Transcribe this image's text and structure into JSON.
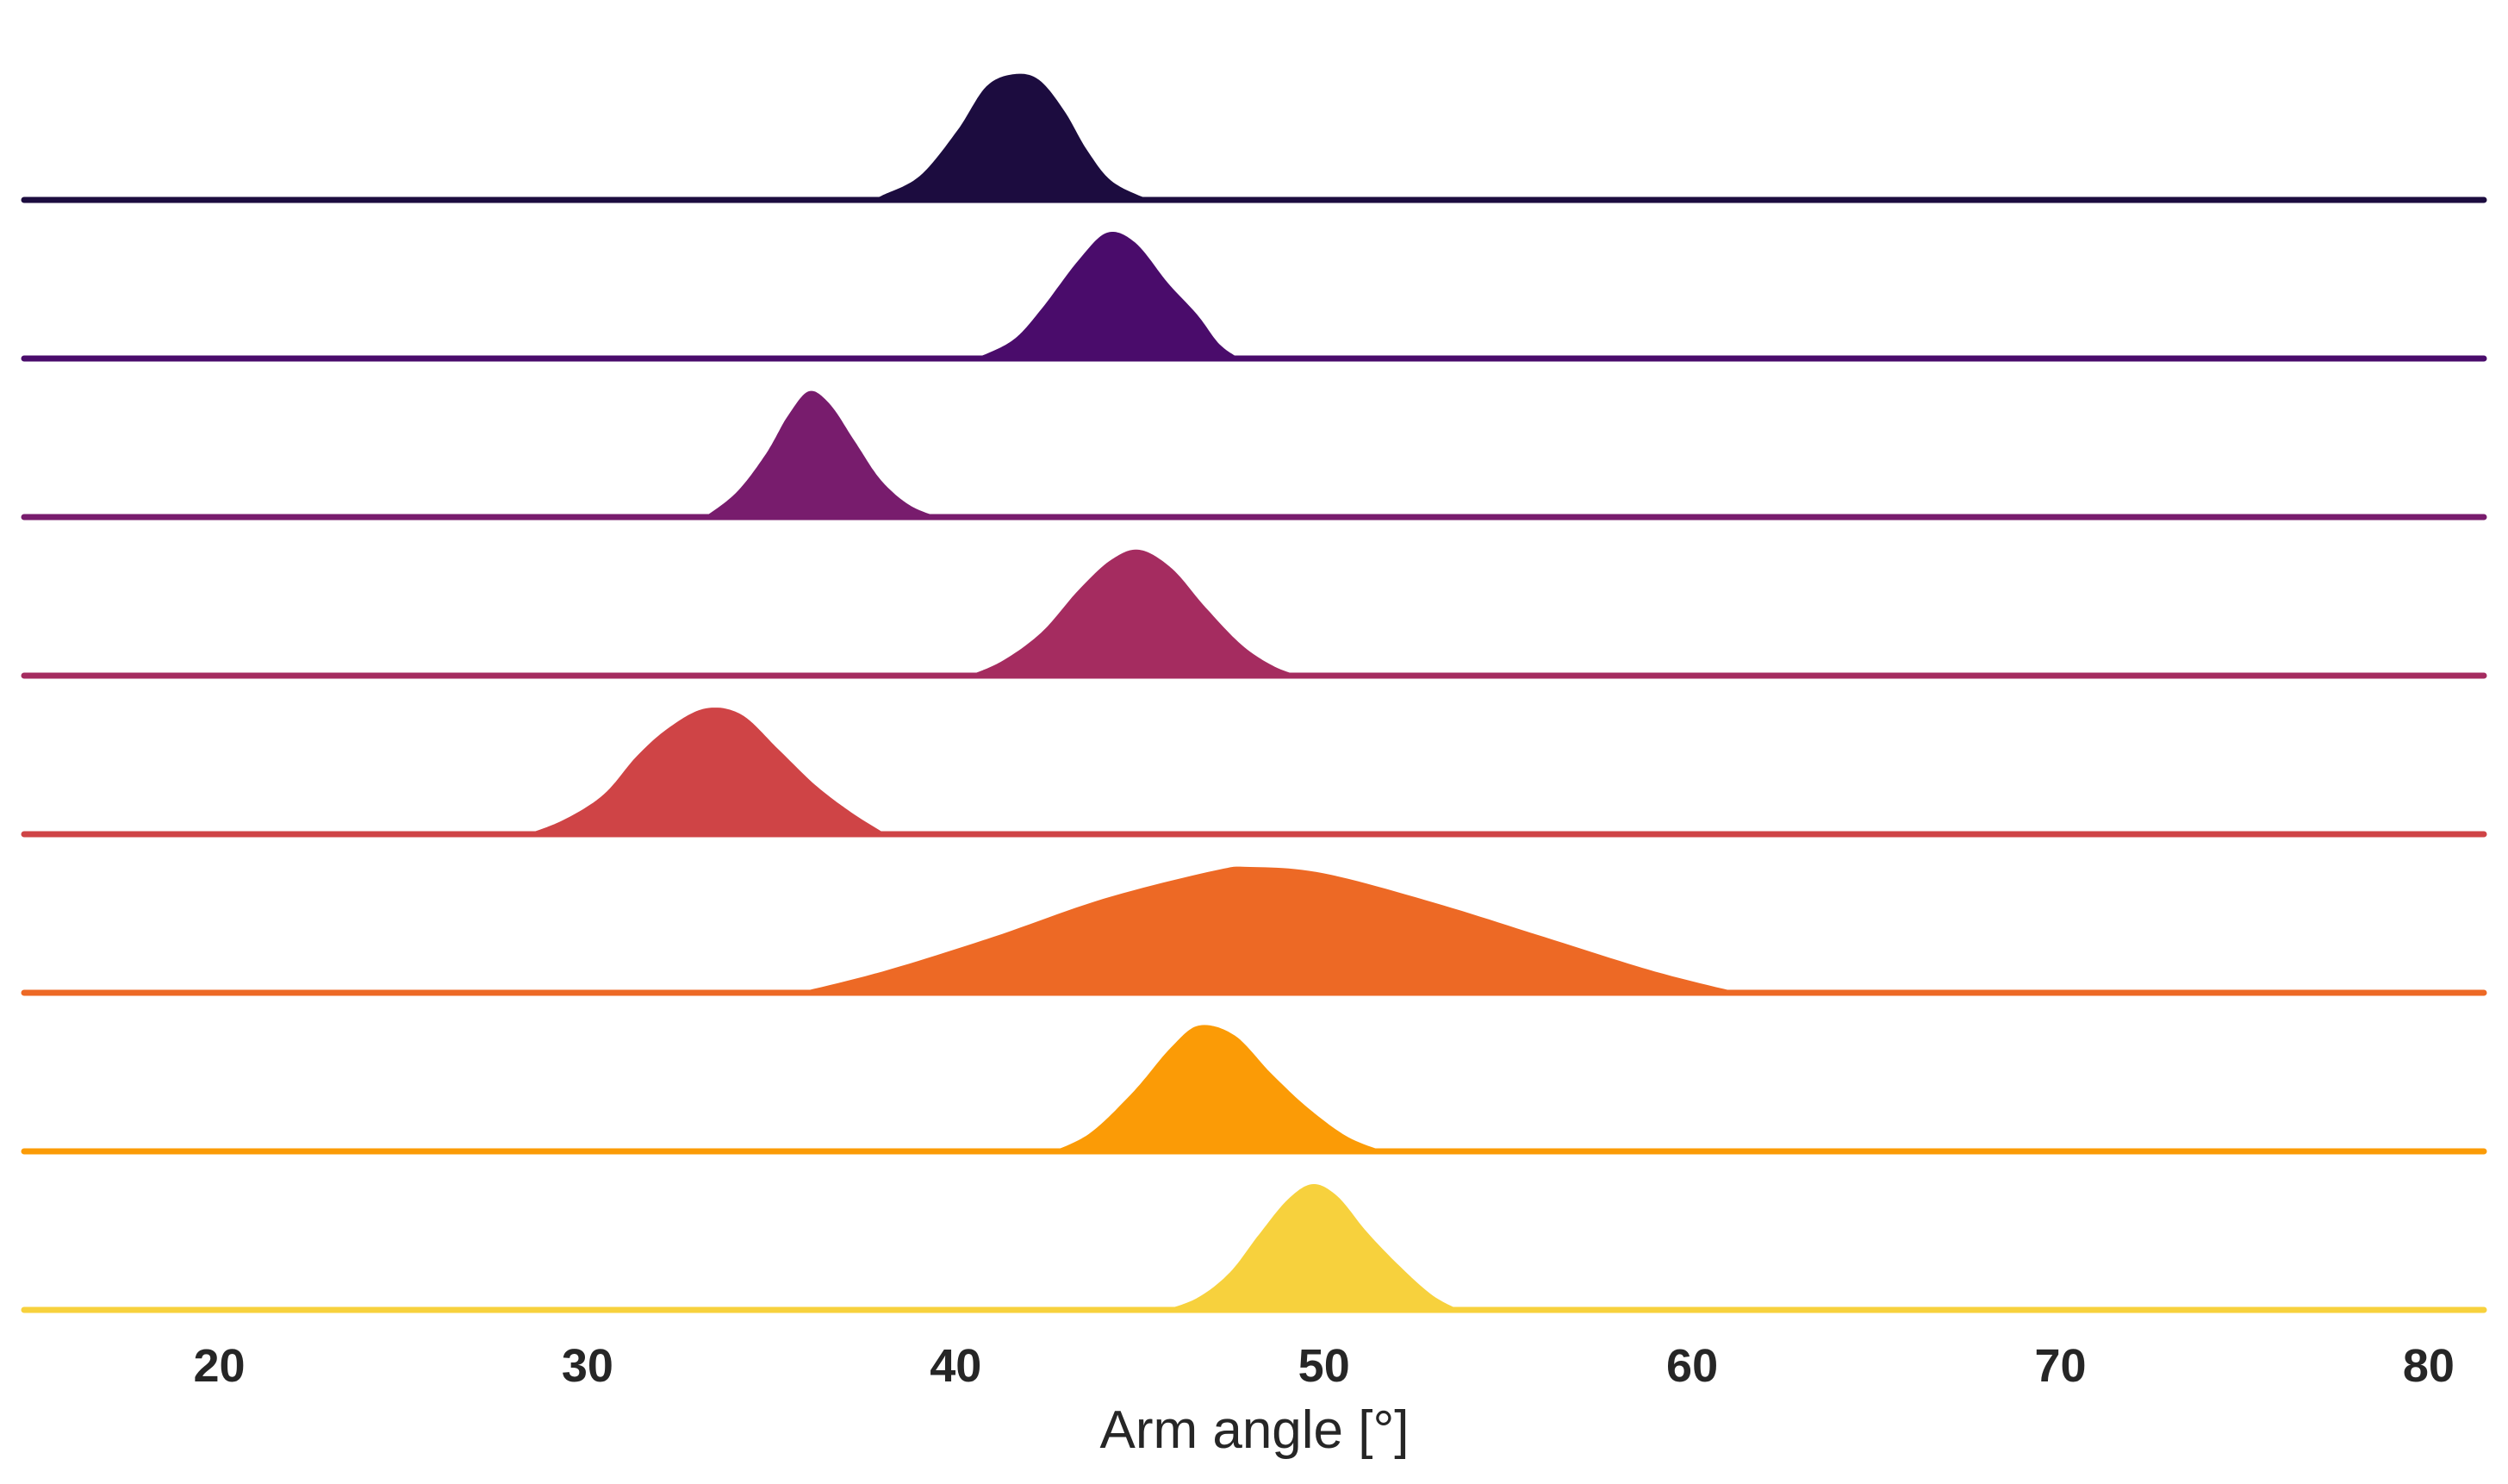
{
  "chart_data": {
    "type": "area",
    "subtype": "ridgeline",
    "title": "",
    "xlabel": "Arm angle [°]",
    "ylabel": "",
    "xlim": [
      14.7,
      81.5
    ],
    "xticks": [
      20,
      30,
      40,
      50,
      60,
      70,
      80
    ],
    "grid": false,
    "legend": "none",
    "series": [
      {
        "color": "#1c0c3f",
        "support": [
          37.6,
          45.4
        ],
        "points": [
          [
            37.6,
            0
          ],
          [
            38.0,
            0.05
          ],
          [
            39.0,
            0.2
          ],
          [
            40.0,
            0.55
          ],
          [
            40.8,
            0.9
          ],
          [
            41.6,
            1.0
          ],
          [
            42.3,
            0.95
          ],
          [
            43.0,
            0.7
          ],
          [
            43.6,
            0.4
          ],
          [
            44.3,
            0.15
          ],
          [
            45.4,
            0
          ]
        ]
      },
      {
        "color": "#4a0c6b",
        "support": [
          40.4,
          47.8
        ],
        "points": [
          [
            40.4,
            0
          ],
          [
            41.5,
            0.15
          ],
          [
            42.3,
            0.4
          ],
          [
            43.3,
            0.78
          ],
          [
            44.1,
            1.0
          ],
          [
            44.9,
            0.92
          ],
          [
            45.8,
            0.6
          ],
          [
            46.6,
            0.35
          ],
          [
            47.2,
            0.12
          ],
          [
            47.8,
            0
          ]
        ]
      },
      {
        "color": "#781c6d",
        "support": [
          33.1,
          39.7
        ],
        "points": [
          [
            33.1,
            0
          ],
          [
            34.0,
            0.2
          ],
          [
            34.8,
            0.5
          ],
          [
            35.4,
            0.8
          ],
          [
            36.0,
            1.0
          ],
          [
            36.6,
            0.9
          ],
          [
            37.3,
            0.6
          ],
          [
            38.0,
            0.3
          ],
          [
            38.8,
            0.1
          ],
          [
            39.7,
            0
          ]
        ]
      },
      {
        "color": "#a52c60",
        "support": [
          40.2,
          49.5
        ],
        "points": [
          [
            40.2,
            0
          ],
          [
            41.2,
            0.12
          ],
          [
            42.3,
            0.35
          ],
          [
            43.3,
            0.68
          ],
          [
            44.2,
            0.92
          ],
          [
            45.0,
            1.0
          ],
          [
            45.9,
            0.85
          ],
          [
            46.8,
            0.55
          ],
          [
            47.8,
            0.25
          ],
          [
            48.7,
            0.08
          ],
          [
            49.5,
            0
          ]
        ]
      },
      {
        "color": "#cf4446",
        "support": [
          28.2,
          38.2
        ],
        "points": [
          [
            28.2,
            0
          ],
          [
            29.3,
            0.12
          ],
          [
            30.4,
            0.32
          ],
          [
            31.3,
            0.62
          ],
          [
            32.2,
            0.85
          ],
          [
            33.2,
            1.0
          ],
          [
            34.2,
            0.95
          ],
          [
            35.2,
            0.68
          ],
          [
            36.2,
            0.4
          ],
          [
            37.2,
            0.18
          ],
          [
            38.2,
            0
          ]
        ]
      },
      {
        "color": "#ed6925",
        "support": [
          35.5,
          61.5
        ],
        "points": [
          [
            35.5,
            0
          ],
          [
            38.0,
            0.18
          ],
          [
            41.0,
            0.45
          ],
          [
            44.0,
            0.75
          ],
          [
            47.0,
            0.97
          ],
          [
            48.0,
            1.0
          ],
          [
            50.0,
            0.95
          ],
          [
            53.0,
            0.72
          ],
          [
            56.0,
            0.45
          ],
          [
            59.0,
            0.18
          ],
          [
            61.5,
            0
          ]
        ]
      },
      {
        "color": "#fb9b06",
        "support": [
          42.5,
          51.8
        ],
        "points": [
          [
            42.5,
            0
          ],
          [
            43.6,
            0.15
          ],
          [
            44.8,
            0.48
          ],
          [
            45.8,
            0.82
          ],
          [
            46.6,
            1.0
          ],
          [
            47.6,
            0.92
          ],
          [
            48.6,
            0.62
          ],
          [
            49.6,
            0.35
          ],
          [
            50.7,
            0.12
          ],
          [
            51.8,
            0
          ]
        ]
      },
      {
        "color": "#f7d13d",
        "support": [
          45.5,
          53.8
        ],
        "points": [
          [
            45.5,
            0
          ],
          [
            46.5,
            0.1
          ],
          [
            47.4,
            0.3
          ],
          [
            48.2,
            0.6
          ],
          [
            49.0,
            0.88
          ],
          [
            49.7,
            1.0
          ],
          [
            50.4,
            0.9
          ],
          [
            51.2,
            0.62
          ],
          [
            52.1,
            0.35
          ],
          [
            53.0,
            0.12
          ],
          [
            53.8,
            0
          ]
        ]
      }
    ]
  }
}
